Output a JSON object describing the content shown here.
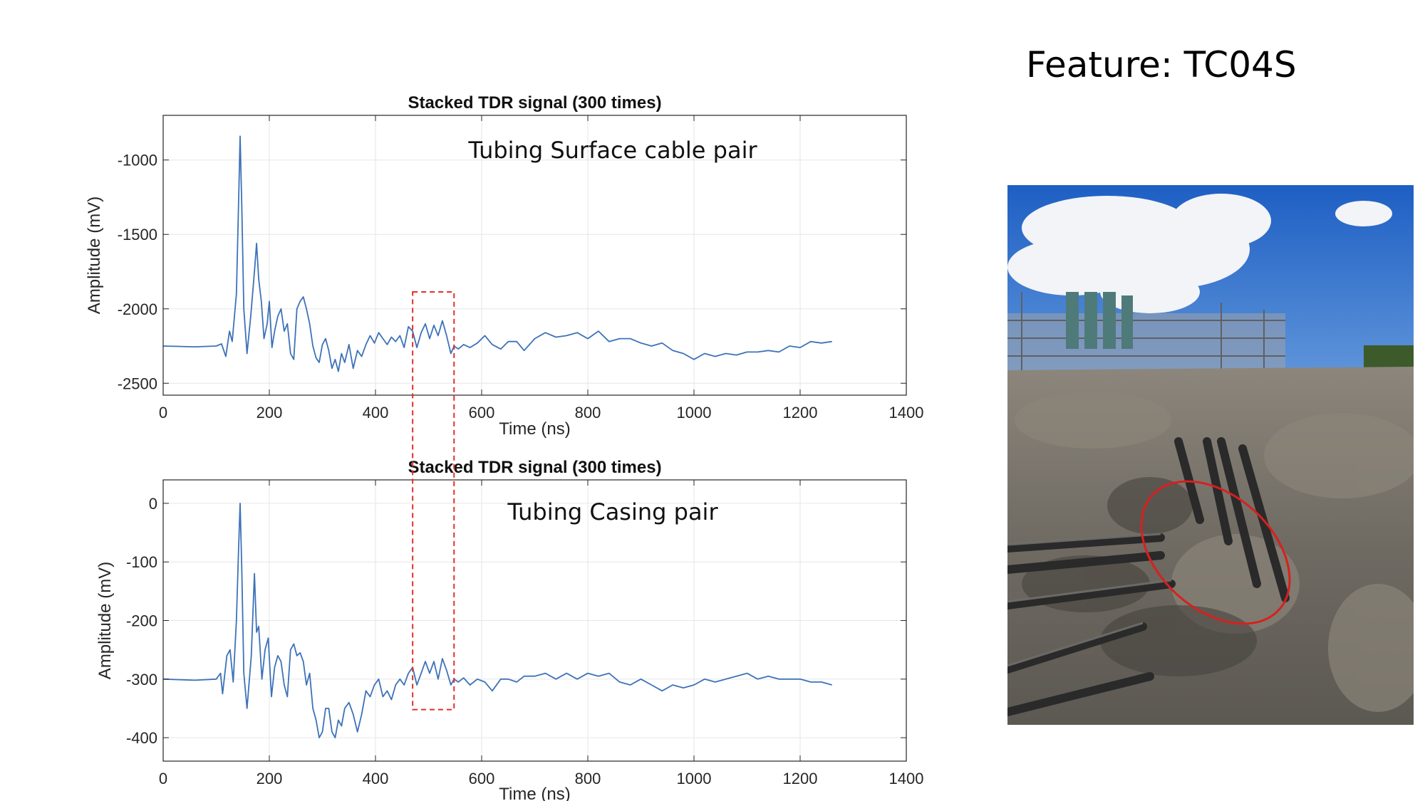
{
  "slide": {
    "title": "Feature: TC04S"
  },
  "colors": {
    "signal": "#3d72b8",
    "highlight_box": "#e0312a",
    "photo_ellipse": "#d8201e"
  },
  "chart_data": [
    {
      "type": "line",
      "title": "Stacked TDR signal (300 times)",
      "annotation": "Tubing Surface cable pair",
      "xlabel": "Time (ns)",
      "ylabel": "Amplitude (mV)",
      "xlim": [
        0,
        1400
      ],
      "ylim": [
        -2580,
        -700
      ],
      "xticks": [
        0,
        200,
        400,
        600,
        800,
        1000,
        1200,
        1400
      ],
      "yticks": [
        -2500,
        -2000,
        -1500,
        -1000
      ],
      "grid": true,
      "highlight_x_range": [
        470,
        548
      ],
      "series": [
        {
          "x": [
            0,
            60,
            100,
            110,
            118,
            125,
            130,
            138,
            142,
            145,
            148,
            152,
            158,
            165,
            172,
            176,
            180,
            185,
            190,
            196,
            200,
            205,
            210,
            216,
            222,
            228,
            234,
            240,
            246,
            252,
            258,
            264,
            270,
            276,
            282,
            288,
            294,
            300,
            306,
            312,
            318,
            324,
            330,
            336,
            342,
            350,
            358,
            366,
            374,
            382,
            390,
            398,
            406,
            414,
            422,
            430,
            438,
            446,
            454,
            462,
            470,
            478,
            486,
            494,
            502,
            510,
            518,
            526,
            534,
            542,
            548,
            556,
            566,
            578,
            592,
            606,
            620,
            636,
            650,
            666,
            680,
            700,
            720,
            740,
            760,
            780,
            800,
            820,
            840,
            860,
            880,
            900,
            920,
            940,
            960,
            980,
            1000,
            1020,
            1040,
            1060,
            1080,
            1100,
            1120,
            1140,
            1160,
            1180,
            1200,
            1220,
            1240,
            1260
          ],
          "y": [
            -2250,
            -2255,
            -2250,
            -2235,
            -2320,
            -2150,
            -2220,
            -1900,
            -1300,
            -840,
            -1300,
            -2000,
            -2300,
            -2050,
            -1750,
            -1560,
            -1800,
            -1950,
            -2200,
            -2100,
            -1950,
            -2260,
            -2150,
            -2050,
            -2000,
            -2150,
            -2100,
            -2300,
            -2340,
            -2000,
            -1950,
            -1920,
            -2000,
            -2100,
            -2250,
            -2330,
            -2360,
            -2240,
            -2200,
            -2280,
            -2400,
            -2340,
            -2420,
            -2300,
            -2360,
            -2240,
            -2400,
            -2280,
            -2320,
            -2240,
            -2180,
            -2230,
            -2160,
            -2200,
            -2240,
            -2190,
            -2220,
            -2180,
            -2260,
            -2120,
            -2150,
            -2260,
            -2160,
            -2100,
            -2200,
            -2110,
            -2180,
            -2080,
            -2180,
            -2300,
            -2250,
            -2270,
            -2240,
            -2260,
            -2230,
            -2180,
            -2240,
            -2270,
            -2220,
            -2220,
            -2280,
            -2200,
            -2160,
            -2190,
            -2180,
            -2160,
            -2200,
            -2150,
            -2220,
            -2200,
            -2200,
            -2230,
            -2250,
            -2230,
            -2280,
            -2300,
            -2340,
            -2300,
            -2320,
            -2300,
            -2310,
            -2290,
            -2290,
            -2280,
            -2290,
            -2250,
            -2260,
            -2220,
            -2230,
            -2220
          ]
        }
      ]
    },
    {
      "type": "line",
      "title": "Stacked TDR signal (300 times)",
      "annotation": "Tubing Casing pair",
      "xlabel": "Time (ns)",
      "ylabel": "Amplitude (mV)",
      "xlim": [
        0,
        1400
      ],
      "ylim": [
        -440,
        40
      ],
      "xticks": [
        0,
        200,
        400,
        600,
        800,
        1000,
        1200,
        1400
      ],
      "yticks": [
        -400,
        -300,
        -200,
        -100,
        0
      ],
      "grid": true,
      "highlight_x_range": [
        470,
        548
      ],
      "series": [
        {
          "x": [
            0,
            60,
            100,
            108,
            112,
            120,
            126,
            132,
            138,
            142,
            145,
            148,
            152,
            158,
            166,
            172,
            176,
            180,
            186,
            192,
            198,
            204,
            210,
            216,
            222,
            228,
            234,
            240,
            246,
            252,
            258,
            264,
            270,
            276,
            282,
            288,
            294,
            300,
            306,
            312,
            318,
            324,
            330,
            336,
            342,
            350,
            358,
            366,
            374,
            382,
            390,
            398,
            406,
            414,
            422,
            430,
            438,
            446,
            454,
            462,
            470,
            478,
            486,
            494,
            502,
            510,
            518,
            526,
            534,
            542,
            548,
            556,
            566,
            578,
            592,
            606,
            620,
            636,
            650,
            666,
            680,
            700,
            720,
            740,
            760,
            780,
            800,
            820,
            840,
            860,
            880,
            900,
            920,
            940,
            960,
            980,
            1000,
            1020,
            1040,
            1060,
            1080,
            1100,
            1120,
            1140,
            1160,
            1180,
            1200,
            1220,
            1240,
            1260
          ],
          "y": [
            -300,
            -302,
            -300,
            -290,
            -325,
            -260,
            -250,
            -305,
            -200,
            -80,
            0,
            -110,
            -290,
            -350,
            -260,
            -120,
            -220,
            -210,
            -300,
            -250,
            -230,
            -330,
            -280,
            -260,
            -270,
            -310,
            -330,
            -250,
            -240,
            -260,
            -255,
            -270,
            -310,
            -290,
            -350,
            -370,
            -400,
            -390,
            -350,
            -350,
            -390,
            -400,
            -370,
            -380,
            -350,
            -340,
            -360,
            -390,
            -360,
            -320,
            -330,
            -310,
            -300,
            -330,
            -320,
            -335,
            -310,
            -300,
            -310,
            -290,
            -280,
            -310,
            -290,
            -270,
            -290,
            -270,
            -300,
            -265,
            -285,
            -310,
            -300,
            -305,
            -298,
            -310,
            -300,
            -305,
            -320,
            -300,
            -300,
            -305,
            -295,
            -295,
            -290,
            -300,
            -290,
            -300,
            -290,
            -295,
            -290,
            -305,
            -310,
            -300,
            -310,
            -320,
            -310,
            -315,
            -310,
            -300,
            -305,
            -300,
            -295,
            -290,
            -300,
            -295,
            -300,
            -300,
            -300,
            -305,
            -305,
            -310
          ]
        }
      ]
    }
  ]
}
